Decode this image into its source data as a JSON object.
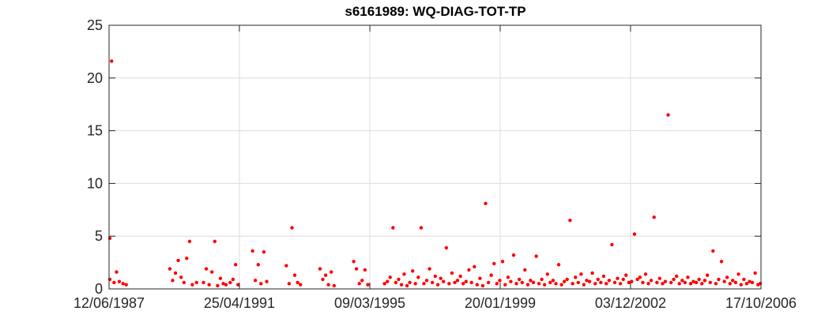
{
  "chart_data": {
    "type": "scatter",
    "title": "s6161989: WQ-DIAG-TOT-TP",
    "xlabel": "",
    "ylabel": "",
    "x_axis_type": "date",
    "xlim": [
      "1987-06-12",
      "2006-10-17"
    ],
    "ylim": [
      0,
      25
    ],
    "x_ticks": [
      "12/06/1987",
      "25/04/1991",
      "09/03/1995",
      "20/01/1999",
      "03/12/2002",
      "17/10/2006"
    ],
    "y_ticks": [
      "0",
      "5",
      "10",
      "15",
      "20",
      "25"
    ],
    "grid": true,
    "legend": "none",
    "marker_color": "#ff0000",
    "series": [
      {
        "x": [
          "1987-06-12",
          "1987-06-20",
          "1987-07-10",
          "1987-08-05",
          "1987-09-01",
          "1987-10-01",
          "1987-11-10",
          "1987-12-15",
          "1989-04-01",
          "1989-05-01",
          "1989-06-01",
          "1989-07-01",
          "1989-08-01",
          "1989-09-01",
          "1989-10-01",
          "1989-11-01",
          "1989-12-01",
          "1990-01-15",
          "1990-04-01",
          "1990-05-01",
          "1990-06-01",
          "1990-07-01",
          "1990-08-01",
          "1990-09-01",
          "1990-10-01",
          "1990-11-01",
          "1990-12-01",
          "1991-01-15",
          "1991-02-15",
          "1991-03-15",
          "1991-04-10",
          "1991-09-15",
          "1991-10-15",
          "1991-11-15",
          "1991-12-15",
          "1992-01-15",
          "1992-02-15",
          "1992-09-15",
          "1992-10-15",
          "1992-11-15",
          "1992-12-15",
          "1993-01-15",
          "1993-02-15",
          "1993-09-15",
          "1993-10-15",
          "1993-11-15",
          "1993-12-15",
          "1994-01-15",
          "1994-02-15",
          "1994-09-15",
          "1994-10-15",
          "1994-11-15",
          "1994-12-15",
          "1995-01-15",
          "1995-02-15",
          "1995-08-15",
          "1995-09-15",
          "1995-10-15",
          "1995-11-15",
          "1995-12-15",
          "1996-01-15",
          "1996-02-15",
          "1996-03-15",
          "1996-04-15",
          "1996-05-15",
          "1996-06-15",
          "1996-07-15",
          "1996-08-15",
          "1996-09-15",
          "1996-10-15",
          "1996-11-15",
          "1996-12-15",
          "1997-01-15",
          "1997-02-15",
          "1997-03-15",
          "1997-04-15",
          "1997-05-15",
          "1997-06-15",
          "1997-07-15",
          "1997-08-15",
          "1997-09-15",
          "1997-10-15",
          "1997-11-15",
          "1997-12-15",
          "1998-01-15",
          "1998-02-15",
          "1998-03-15",
          "1998-04-15",
          "1998-05-15",
          "1998-06-15",
          "1998-07-15",
          "1998-08-15",
          "1998-09-15",
          "1998-10-15",
          "1998-11-15",
          "1998-12-15",
          "1999-01-15",
          "1999-02-15",
          "1999-03-15",
          "1999-04-15",
          "1999-05-15",
          "1999-06-15",
          "1999-07-15",
          "1999-08-15",
          "1999-09-15",
          "1999-10-15",
          "1999-11-15",
          "1999-12-15",
          "2000-01-15",
          "2000-02-15",
          "2000-03-15",
          "2000-04-15",
          "2000-05-15",
          "2000-06-15",
          "2000-07-15",
          "2000-08-15",
          "2000-09-15",
          "2000-10-15",
          "2000-11-15",
          "2000-12-15",
          "2001-01-15",
          "2001-02-15",
          "2001-03-15",
          "2001-04-15",
          "2001-05-15",
          "2001-06-15",
          "2001-07-15",
          "2001-08-15",
          "2001-09-15",
          "2001-10-15",
          "2001-11-15",
          "2001-12-15",
          "2002-01-15",
          "2002-02-15",
          "2002-03-15",
          "2002-04-15",
          "2002-05-15",
          "2002-06-15",
          "2002-07-15",
          "2002-08-15",
          "2002-09-15",
          "2002-10-15",
          "2002-11-15",
          "2002-12-15",
          "2003-01-15",
          "2003-02-15",
          "2003-03-15",
          "2003-04-15",
          "2003-05-15",
          "2003-06-15",
          "2003-07-15",
          "2003-08-15",
          "2003-09-15",
          "2003-10-15",
          "2003-11-15",
          "2003-12-15",
          "2004-01-15",
          "2004-02-15",
          "2004-03-15",
          "2004-04-15",
          "2004-05-15",
          "2004-06-15",
          "2004-07-15",
          "2004-08-15",
          "2004-09-15",
          "2004-10-15",
          "2004-11-15",
          "2004-12-15",
          "2005-01-15",
          "2005-02-15",
          "2005-03-15",
          "2005-04-15",
          "2005-05-15",
          "2005-06-15",
          "2005-07-15",
          "2005-08-15",
          "2005-09-15",
          "2005-10-15",
          "2005-11-15",
          "2005-12-15",
          "2006-01-15",
          "2006-02-15",
          "2006-03-15",
          "2006-04-15",
          "2006-05-15",
          "2006-06-15",
          "2006-07-15",
          "2006-08-15",
          "2006-09-15",
          "2006-10-10"
        ],
        "y": [
          4.8,
          0.9,
          21.6,
          0.6,
          1.6,
          0.7,
          0.5,
          0.4,
          1.9,
          0.8,
          1.5,
          2.7,
          1.1,
          0.6,
          2.9,
          4.5,
          0.4,
          0.6,
          0.6,
          1.9,
          0.4,
          1.6,
          4.5,
          0.3,
          1.0,
          0.5,
          0.4,
          0.6,
          0.9,
          2.3,
          0.4,
          3.6,
          0.8,
          2.3,
          0.5,
          3.5,
          0.7,
          2.2,
          0.5,
          5.8,
          1.3,
          0.6,
          0.4,
          1.9,
          0.9,
          1.3,
          0.4,
          1.6,
          0.3,
          2.6,
          1.9,
          0.5,
          0.8,
          1.8,
          0.4,
          0.5,
          0.7,
          1.1,
          5.8,
          0.6,
          0.9,
          0.4,
          1.4,
          0.3,
          0.6,
          1.7,
          0.5,
          1.1,
          5.8,
          0.5,
          0.8,
          1.9,
          0.6,
          1.2,
          0.4,
          1.0,
          0.7,
          3.9,
          0.5,
          1.5,
          0.6,
          0.8,
          1.2,
          0.5,
          0.7,
          1.8,
          0.6,
          2.1,
          0.4,
          1.0,
          0.3,
          8.1,
          0.6,
          1.3,
          2.4,
          0.5,
          0.8,
          2.6,
          0.4,
          1.1,
          0.7,
          3.2,
          0.5,
          0.9,
          0.6,
          1.8,
          0.4,
          0.8,
          0.6,
          3.1,
          0.5,
          0.9,
          0.4,
          1.4,
          0.6,
          0.8,
          0.5,
          2.3,
          0.4,
          0.7,
          0.9,
          6.5,
          0.5,
          1.1,
          0.6,
          1.4,
          0.4,
          0.8,
          0.7,
          1.5,
          0.5,
          0.9,
          0.6,
          1.2,
          0.5,
          0.8,
          4.2,
          0.6,
          1.0,
          0.5,
          0.9,
          1.3,
          0.6,
          0.7,
          5.2,
          0.9,
          1.1,
          0.6,
          1.4,
          0.5,
          0.8,
          6.8,
          0.6,
          1.0,
          0.5,
          0.7,
          16.5,
          0.6,
          0.9,
          1.2,
          0.5,
          0.8,
          0.6,
          1.1,
          0.5,
          0.7,
          0.6,
          0.9,
          0.5,
          0.8,
          1.3,
          0.6,
          3.6,
          0.5,
          0.9,
          2.6,
          0.7,
          1.1,
          0.5,
          0.8,
          0.6,
          1.4,
          0.4,
          0.9,
          0.5,
          0.7,
          0.6,
          1.5,
          0.4,
          0.5
        ]
      }
    ]
  }
}
